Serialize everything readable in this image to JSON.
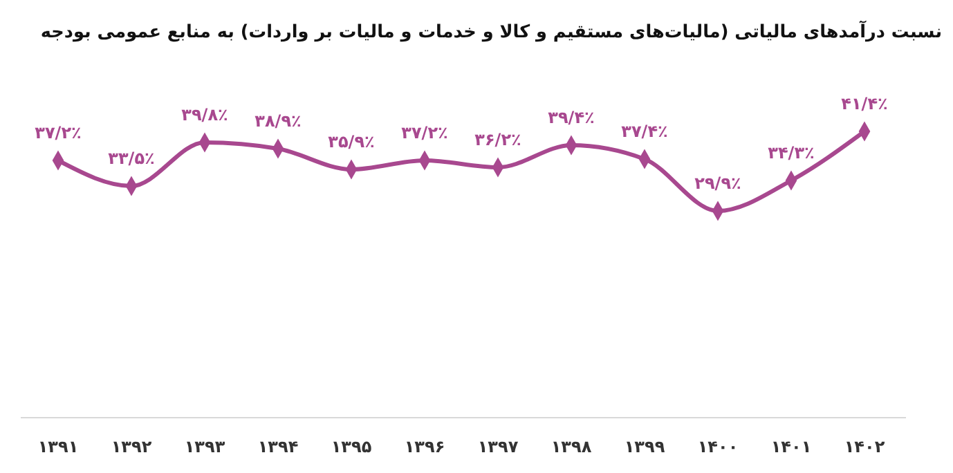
{
  "chart_data": {
    "type": "line",
    "title": "نسبت درآمدهای مالیاتی (مالیات‌های مستقیم و کالا و خدمات و مالیات بر واردات) به منابع عمومی بودجه",
    "categories": [
      "۱۳۹۱",
      "۱۳۹۲",
      "۱۳۹۳",
      "۱۳۹۴",
      "۱۳۹۵",
      "۱۳۹۶",
      "۱۳۹۷",
      "۱۳۹۸",
      "۱۳۹۹",
      "۱۴۰۰",
      "۱۴۰۱",
      "۱۴۰۲"
    ],
    "series": [
      {
        "color": "#a8488f",
        "values": [
          37.2,
          33.5,
          39.8,
          38.9,
          35.9,
          37.2,
          36.2,
          39.4,
          37.4,
          29.9,
          34.3,
          41.4
        ],
        "value_labels": [
          "۳۷/۲٪",
          "۳۳/۵٪",
          "۳۹/۸٪",
          "۳۸/۹٪",
          "۳۵/۹٪",
          "۳۷/۲٪",
          "۳۶/۲٪",
          "۳۹/۴٪",
          "۳۷/۴٪",
          "۲۹/۹٪",
          "۳۴/۳٪",
          "۴۱/۴٪"
        ]
      }
    ],
    "tick_labels": "x",
    "marker": "diamond",
    "line_style": "solid"
  }
}
